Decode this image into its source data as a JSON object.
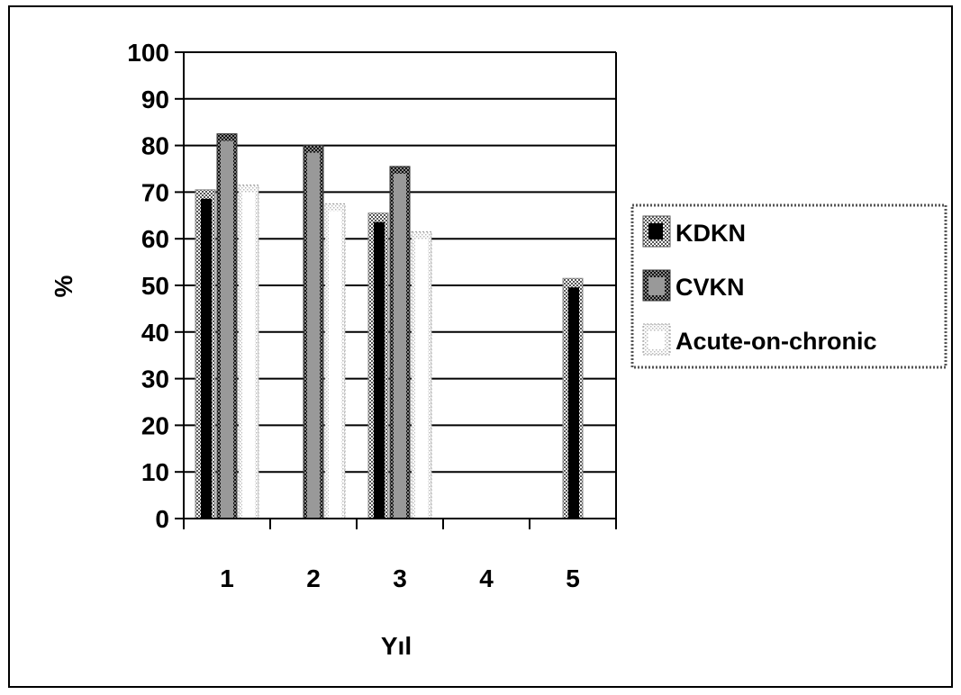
{
  "chart_data": {
    "type": "bar",
    "title": "",
    "xlabel": "Yıl",
    "ylabel": "%",
    "categories": [
      "1",
      "2",
      "3",
      "4",
      "5"
    ],
    "ylim": [
      0,
      100
    ],
    "yticks": [
      0,
      10,
      20,
      30,
      40,
      50,
      60,
      70,
      80,
      90,
      100
    ],
    "grid": true,
    "legend_position": "right",
    "series": [
      {
        "name": "KDKN",
        "values": [
          70.5,
          null,
          65.5,
          null,
          51.5
        ],
        "color": "#000000",
        "pattern": "dark-checker"
      },
      {
        "name": "CVKN",
        "values": [
          82.5,
          80,
          75.5,
          null,
          null
        ],
        "color": "#999999",
        "pattern": "gray-dotted-border"
      },
      {
        "name": "Acute-on-chronic",
        "values": [
          71.5,
          67.5,
          61.5,
          null,
          null
        ],
        "color": "#ffffff",
        "pattern": "dotted-outline"
      }
    ]
  }
}
